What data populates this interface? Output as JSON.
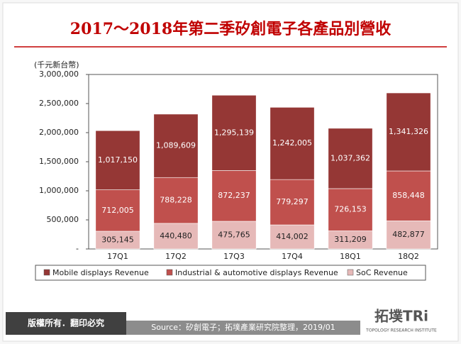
{
  "chart_data": {
    "type": "stacked_bar",
    "title": "2017～2018年第二季矽創電子各產品別營收",
    "y_unit": "(千元新台幣)",
    "categories": [
      "17Q1",
      "17Q2",
      "17Q3",
      "17Q4",
      "18Q1",
      "18Q2"
    ],
    "series": [
      {
        "name": "Mobile displays Revenue",
        "color": "#953735",
        "label_color": "#ffffff",
        "values": [
          1017150,
          1089609,
          1295139,
          1242005,
          1037362,
          1341326
        ],
        "value_labels": [
          "1,017,150",
          "1,089,609",
          "1,295,139",
          "1,242,005",
          "1,037,362",
          "1,341,326"
        ]
      },
      {
        "name": "Industrial & automotive displays Revenue",
        "color": "#c0504d",
        "label_color": "#ffffff",
        "values": [
          712005,
          788228,
          872237,
          779297,
          726153,
          858448
        ],
        "value_labels": [
          "712,005",
          "788,228",
          "872,237",
          "779,297",
          "726,153",
          "858,448"
        ]
      },
      {
        "name": "SoC Revenue",
        "color": "#e6b9b8",
        "label_color": "#222222",
        "values": [
          305145,
          440480,
          475765,
          414002,
          311209,
          482877
        ],
        "value_labels": [
          "305,145",
          "440,480",
          "475,765",
          "414,002",
          "311,209",
          "482,877"
        ]
      }
    ],
    "stack_from": "last",
    "ylim": [
      0,
      3000000
    ],
    "yticks": [
      {
        "value": 0,
        "label": "-"
      },
      {
        "value": 500000,
        "label": "500,000"
      },
      {
        "value": 1000000,
        "label": "1,000,000"
      },
      {
        "value": 1500000,
        "label": "1,500,000"
      },
      {
        "value": 2000000,
        "label": "2,000,000"
      },
      {
        "value": 2500000,
        "label": "2,500,000"
      },
      {
        "value": 3000000,
        "label": "3,000,000"
      }
    ],
    "grid": false
  },
  "footer": {
    "copyright": "版權所有．翻印必究",
    "source": "Source：矽創電子；拓墣產業研究院整理，2019/01",
    "logo": "拓墣TRi",
    "logo_sub": "TOPOLOGY RESEARCH INSTITUTE"
  }
}
